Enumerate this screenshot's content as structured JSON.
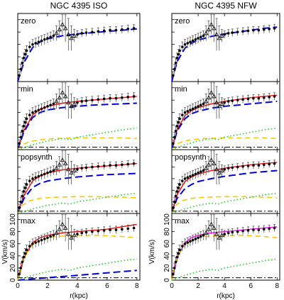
{
  "figure": {
    "titles": [
      "NGC 4395 ISO",
      "NGC 4395 NFW"
    ],
    "row_labels": [
      "zero",
      "min",
      "popsynth",
      "max"
    ],
    "xlabel": "r(kpc)",
    "ylabel": "V(km/s)",
    "x_ticks": [
      "0",
      "2",
      "4",
      "6",
      "8"
    ],
    "y_ticks": [
      "0",
      "20",
      "40",
      "60",
      "80",
      "100"
    ]
  },
  "chart_data": {
    "type": "line",
    "xlim": [
      0,
      8.2
    ],
    "ylim": [
      0,
      110
    ],
    "colors": {
      "data": "#000000",
      "total_fit": "#ff0000",
      "halo": "#0000dd",
      "disk": "#f5c800",
      "gas": "#22cc22",
      "bulge": "#000000",
      "total_fit_nfw_max": "#ff00ff"
    },
    "observed": {
      "r": [
        0.1,
        0.2,
        0.3,
        0.4,
        0.5,
        0.6,
        0.8,
        1.0,
        1.2,
        1.4,
        1.6,
        1.8,
        2.0,
        2.2,
        2.4,
        2.6,
        2.8,
        3.0,
        3.2,
        3.4,
        3.6,
        3.8,
        4.0,
        4.3,
        4.6,
        5.0,
        5.4,
        5.8,
        6.2,
        6.6,
        7.0,
        7.4,
        7.8
      ],
      "v": [
        10,
        20,
        30,
        38,
        44,
        50,
        56,
        60,
        62,
        64,
        66,
        68,
        70,
        72,
        74,
        78,
        84,
        92,
        86,
        76,
        70,
        74,
        76,
        78,
        79,
        80,
        81,
        82,
        83,
        83,
        84,
        85,
        86
      ],
      "err": [
        6,
        8,
        8,
        8,
        8,
        8,
        8,
        8,
        8,
        8,
        8,
        8,
        8,
        8,
        8,
        12,
        14,
        16,
        22,
        26,
        20,
        10,
        6,
        6,
        6,
        6,
        6,
        6,
        6,
        6,
        6,
        6,
        6
      ]
    },
    "panels": [
      {
        "column": "NGC 4395 ISO",
        "row": "zero",
        "curves": [
          {
            "component": "halo",
            "r": [
              0,
              0.4,
              1,
              1.5,
              2,
              3,
              4,
              5,
              6,
              7,
              8
            ],
            "v": [
              0,
              30,
              55,
              64,
              69,
              74,
              77,
              79,
              81,
              83,
              85
            ]
          }
        ]
      },
      {
        "column": "NGC 4395 ISO",
        "row": "min",
        "curves": [
          {
            "component": "total_fit",
            "r": [
              0,
              0.4,
              1,
              1.5,
              2,
              3,
              4,
              5,
              6,
              7,
              8
            ],
            "v": [
              0,
              30,
              56,
              65,
              70,
              75,
              78,
              80,
              82,
              84,
              86
            ]
          },
          {
            "component": "halo",
            "r": [
              0,
              0.4,
              1,
              1.5,
              2,
              3,
              4,
              5,
              6,
              7,
              8
            ],
            "v": [
              0,
              28,
              52,
              60,
              64,
              68,
              70,
              72,
              73,
              74,
              75
            ]
          },
          {
            "component": "disk",
            "r": [
              0,
              0.3,
              0.8,
              1.5,
              2.5,
              4,
              5.5,
              7,
              8
            ],
            "v": [
              0,
              8,
              13,
              16,
              18,
              19,
              19,
              19,
              18
            ]
          },
          {
            "component": "gas",
            "r": [
              0,
              1,
              2,
              3,
              3.5,
              4,
              5,
              6,
              7,
              8
            ],
            "v": [
              0,
              8,
              14,
              18,
              16,
              20,
              24,
              28,
              32,
              35
            ]
          },
          {
            "component": "bulge",
            "r": [
              0,
              8
            ],
            "v": [
              4,
              4
            ]
          }
        ]
      },
      {
        "column": "NGC 4395 ISO",
        "row": "popsynth",
        "curves": [
          {
            "component": "total_fit",
            "r": [
              0,
              0.4,
              1,
              1.5,
              2,
              3,
              4,
              5,
              6,
              7,
              8
            ],
            "v": [
              0,
              30,
              56,
              65,
              70,
              75,
              78,
              80,
              82,
              84,
              86
            ]
          },
          {
            "component": "halo",
            "r": [
              0,
              0.4,
              1,
              1.5,
              2,
              3,
              4,
              5,
              6,
              7,
              8
            ],
            "v": [
              0,
              25,
              45,
              52,
              56,
              60,
              63,
              65,
              67,
              68,
              69
            ]
          },
          {
            "component": "disk",
            "r": [
              0,
              0.3,
              0.8,
              1.5,
              2.5,
              4,
              5.5,
              7,
              8
            ],
            "v": [
              0,
              14,
              22,
              26,
              28,
              29,
              29,
              28,
              27
            ]
          },
          {
            "component": "gas",
            "r": [
              0,
              1,
              2,
              3,
              3.5,
              4,
              5,
              6,
              7,
              8
            ],
            "v": [
              0,
              8,
              14,
              18,
              16,
              20,
              24,
              28,
              32,
              35
            ]
          },
          {
            "component": "bulge",
            "r": [
              0,
              8
            ],
            "v": [
              4,
              4
            ]
          }
        ]
      },
      {
        "column": "NGC 4395 ISO",
        "row": "max",
        "curves": [
          {
            "component": "total_fit",
            "r": [
              0,
              0.4,
              1,
              1.5,
              2,
              3,
              4,
              5,
              6,
              7,
              8
            ],
            "v": [
              0,
              36,
              62,
              70,
              74,
              78,
              80,
              82,
              84,
              88,
              92
            ]
          },
          {
            "component": "halo",
            "r": [
              0,
              1,
              2,
              3,
              4,
              5,
              6,
              7,
              8
            ],
            "v": [
              0,
              2,
              4,
              6,
              8,
              10,
              12,
              14,
              16
            ]
          },
          {
            "component": "disk",
            "r": [
              0,
              0.3,
              0.8,
              1.5,
              2.5,
              4,
              5.5,
              7,
              8
            ],
            "v": [
              0,
              30,
              54,
              66,
              72,
              74,
              74,
              72,
              70
            ]
          },
          {
            "component": "gas",
            "r": [
              0,
              1,
              2,
              3,
              3.5,
              4,
              5,
              6,
              7,
              8
            ],
            "v": [
              0,
              8,
              14,
              18,
              16,
              20,
              24,
              28,
              32,
              35
            ]
          },
          {
            "component": "bulge",
            "r": [
              0,
              8
            ],
            "v": [
              4,
              4
            ]
          }
        ]
      },
      {
        "column": "NGC 4395 NFW",
        "row": "zero",
        "curves": [
          {
            "component": "halo",
            "r": [
              0,
              0.4,
              1,
              1.5,
              2,
              3,
              4,
              5,
              6,
              7,
              8
            ],
            "v": [
              0,
              32,
              54,
              62,
              67,
              73,
              77,
              80,
              83,
              86,
              88
            ]
          }
        ]
      },
      {
        "column": "NGC 4395 NFW",
        "row": "min",
        "curves": [
          {
            "component": "total_fit",
            "r": [
              0,
              0.4,
              1,
              1.5,
              2,
              3,
              4,
              5,
              6,
              7,
              8
            ],
            "v": [
              0,
              32,
              55,
              63,
              68,
              74,
              78,
              81,
              84,
              86,
              88
            ]
          },
          {
            "component": "halo",
            "r": [
              0,
              0.4,
              1,
              1.5,
              2,
              3,
              4,
              5,
              6,
              7,
              8
            ],
            "v": [
              0,
              30,
              50,
              58,
              62,
              67,
              70,
              72,
              74,
              76,
              78
            ]
          },
          {
            "component": "disk",
            "r": [
              0,
              0.3,
              0.8,
              1.5,
              2.5,
              4,
              5.5,
              7,
              8
            ],
            "v": [
              0,
              8,
              13,
              16,
              18,
              19,
              19,
              19,
              18
            ]
          },
          {
            "component": "gas",
            "r": [
              0,
              1,
              2,
              3,
              3.5,
              4,
              5,
              6,
              7,
              8
            ],
            "v": [
              0,
              8,
              14,
              18,
              16,
              20,
              24,
              28,
              32,
              35
            ]
          },
          {
            "component": "bulge",
            "r": [
              0,
              8
            ],
            "v": [
              4,
              4
            ]
          }
        ]
      },
      {
        "column": "NGC 4395 NFW",
        "row": "popsynth",
        "curves": [
          {
            "component": "total_fit",
            "r": [
              0,
              0.4,
              1,
              1.5,
              2,
              3,
              4,
              5,
              6,
              7,
              8
            ],
            "v": [
              0,
              32,
              55,
              63,
              68,
              74,
              78,
              81,
              84,
              86,
              88
            ]
          },
          {
            "component": "halo",
            "r": [
              0,
              0.4,
              1,
              1.5,
              2,
              3,
              4,
              5,
              6,
              7,
              8
            ],
            "v": [
              0,
              26,
              43,
              50,
              55,
              60,
              64,
              67,
              70,
              72,
              74
            ]
          },
          {
            "component": "disk",
            "r": [
              0,
              0.3,
              0.8,
              1.5,
              2.5,
              4,
              5.5,
              7,
              8
            ],
            "v": [
              0,
              14,
              22,
              26,
              28,
              29,
              29,
              28,
              27
            ]
          },
          {
            "component": "gas",
            "r": [
              0,
              1,
              2,
              3,
              3.5,
              4,
              5,
              6,
              7,
              8
            ],
            "v": [
              0,
              8,
              14,
              18,
              16,
              20,
              24,
              28,
              32,
              35
            ]
          },
          {
            "component": "bulge",
            "r": [
              0,
              8
            ],
            "v": [
              4,
              4
            ]
          }
        ]
      },
      {
        "column": "NGC 4395 NFW",
        "row": "max",
        "curves": [
          {
            "component": "total_fit_nfw_max",
            "r": [
              0,
              0.4,
              1,
              1.5,
              2,
              3,
              4,
              5,
              6,
              7,
              8
            ],
            "v": [
              0,
              36,
              62,
              70,
              74,
              78,
              80,
              82,
              84,
              86,
              88
            ]
          },
          {
            "component": "disk",
            "r": [
              0,
              0.3,
              0.8,
              1.5,
              2.5,
              4,
              5.5,
              7,
              8
            ],
            "v": [
              0,
              30,
              54,
              66,
              72,
              74,
              74,
              72,
              70
            ]
          },
          {
            "component": "gas",
            "r": [
              0,
              1,
              2,
              3,
              3.5,
              4,
              5,
              6,
              7,
              8
            ],
            "v": [
              0,
              8,
              14,
              18,
              16,
              20,
              24,
              28,
              32,
              35
            ]
          },
          {
            "component": "bulge",
            "r": [
              0,
              8
            ],
            "v": [
              4,
              4
            ]
          }
        ]
      }
    ]
  }
}
